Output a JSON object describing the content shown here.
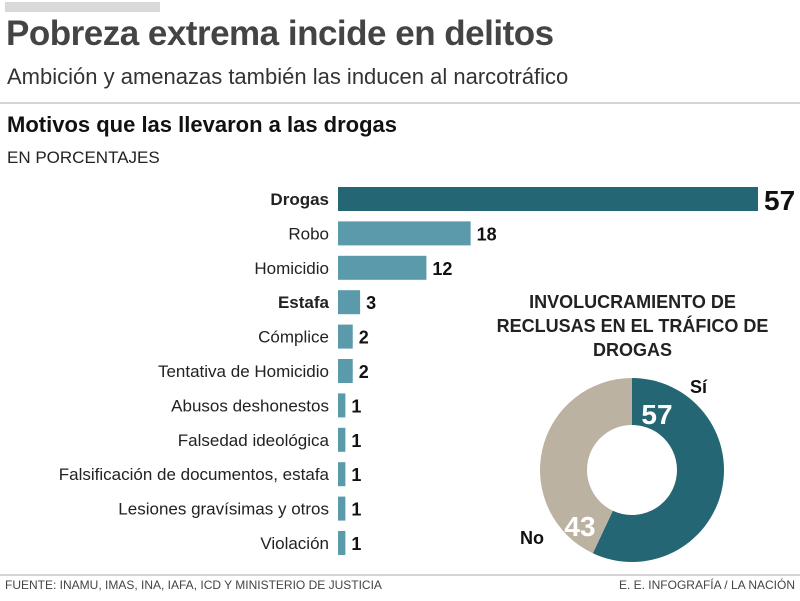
{
  "header": {
    "title": "Pobreza extrema incide en delitos",
    "subtitle": "Ambición y amenazas también las inducen al narcotráfico"
  },
  "footer": {
    "source": "FUENTE:  INAMU, IMAS, INA, IAFA, ICD Y MINISTERIO DE JUSTICIA",
    "credit": "E. E. INFOGRAFÍA / LA NACIÓN"
  },
  "colors": {
    "dark": "#246673",
    "light": "#5a9aab",
    "beige": "#bcb2a2"
  },
  "chart_data": [
    {
      "type": "bar",
      "orientation": "horizontal",
      "title": "Motivos que las llevaron a las drogas",
      "subtitle": "EN PORCENTAJES",
      "categories": [
        "Drogas",
        "Robo",
        "Homicidio",
        "Estafa",
        "Cómplice",
        "Tentativa de Homicidio",
        "Abusos deshonestos",
        "Falsedad ideológica",
        "Falsificación de documentos, estafa",
        "Lesiones gravísimas y otros",
        "Violación"
      ],
      "values": [
        57,
        18,
        12,
        3,
        2,
        2,
        1,
        1,
        1,
        1,
        1
      ],
      "xlim": [
        0,
        57
      ]
    },
    {
      "type": "pie",
      "subtype": "donut",
      "title": "INVOLUCRAMIENTO DE RECLUSAS EN EL TRÁFICO DE DROGAS",
      "labels": [
        "Sí",
        "No"
      ],
      "values": [
        57,
        43
      ]
    }
  ]
}
